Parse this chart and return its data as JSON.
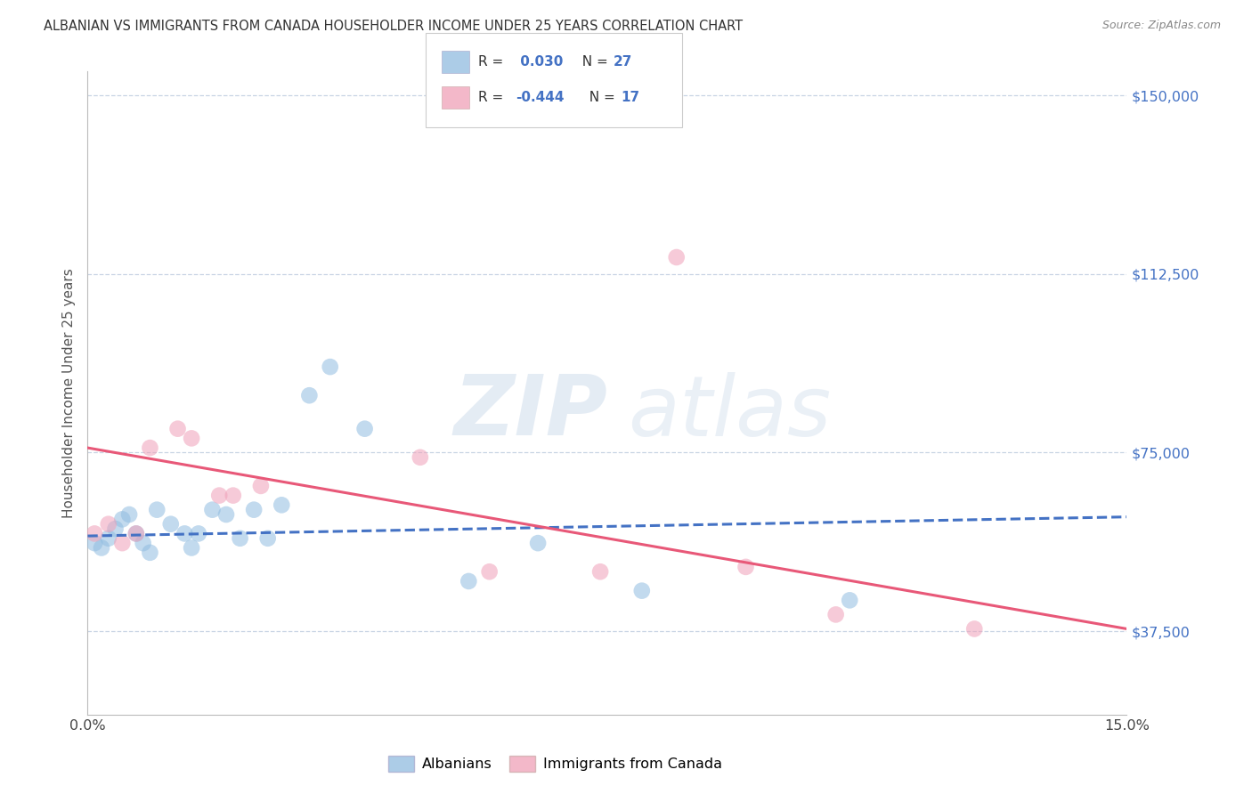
{
  "title": "ALBANIAN VS IMMIGRANTS FROM CANADA HOUSEHOLDER INCOME UNDER 25 YEARS CORRELATION CHART",
  "source": "Source: ZipAtlas.com",
  "ylabel": "Householder Income Under 25 years",
  "xlim": [
    0,
    0.15
  ],
  "ylim": [
    20000,
    155000
  ],
  "yticks": [
    37500,
    75000,
    112500,
    150000
  ],
  "ytick_labels": [
    "$37,500",
    "$75,000",
    "$112,500",
    "$150,000"
  ],
  "xticks": [
    0.0,
    0.05,
    0.1,
    0.15
  ],
  "xtick_labels": [
    "0.0%",
    "",
    "",
    "15.0%"
  ],
  "watermark_zip": "ZIP",
  "watermark_atlas": "atlas",
  "blue_scatter_x": [
    0.001,
    0.002,
    0.003,
    0.004,
    0.005,
    0.006,
    0.007,
    0.008,
    0.009,
    0.01,
    0.012,
    0.014,
    0.015,
    0.016,
    0.018,
    0.02,
    0.022,
    0.024,
    0.026,
    0.028,
    0.032,
    0.035,
    0.04,
    0.055,
    0.065,
    0.08,
    0.11
  ],
  "blue_scatter_y": [
    56000,
    55000,
    57000,
    59000,
    61000,
    62000,
    58000,
    56000,
    54000,
    63000,
    60000,
    58000,
    55000,
    58000,
    63000,
    62000,
    57000,
    63000,
    57000,
    64000,
    87000,
    93000,
    80000,
    48000,
    56000,
    46000,
    44000
  ],
  "pink_scatter_x": [
    0.001,
    0.003,
    0.005,
    0.007,
    0.009,
    0.013,
    0.015,
    0.019,
    0.021,
    0.025,
    0.048,
    0.058,
    0.074,
    0.085,
    0.095,
    0.108,
    0.128
  ],
  "pink_scatter_y": [
    58000,
    60000,
    56000,
    58000,
    76000,
    80000,
    78000,
    66000,
    66000,
    68000,
    74000,
    50000,
    50000,
    116000,
    51000,
    41000,
    38000
  ],
  "blue_line_x": [
    0.0,
    0.15
  ],
  "blue_line_y": [
    57500,
    61500
  ],
  "pink_line_x": [
    0.0,
    0.15
  ],
  "pink_line_y": [
    76000,
    38000
  ],
  "dot_size": 180,
  "background_color": "#ffffff",
  "grid_color": "#c8d4e4",
  "blue_color": "#90bce0",
  "pink_color": "#f0a0b8",
  "blue_line_color": "#4472c4",
  "pink_line_color": "#e85878",
  "title_color": "#333333",
  "axis_label_color": "#555555",
  "ytick_color": "#4472c4",
  "source_color": "#888888",
  "legend_text_color": "#4472c4",
  "legend_r_color": "#333333"
}
